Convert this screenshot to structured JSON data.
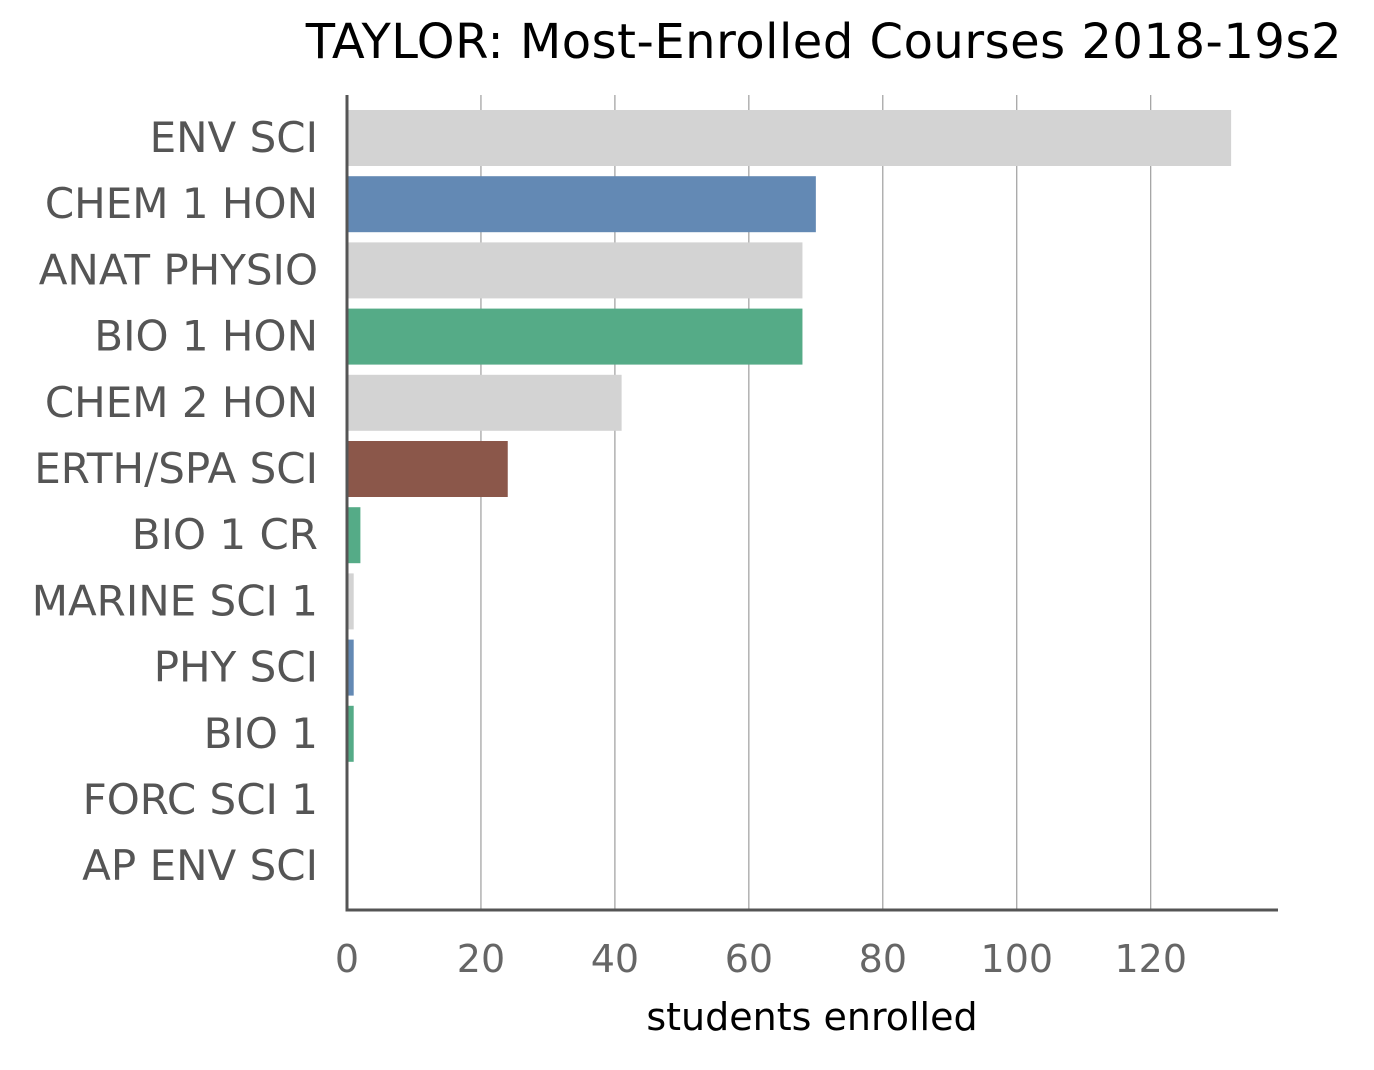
{
  "chart_data": {
    "type": "bar",
    "orientation": "horizontal",
    "title": "TAYLOR: Most-Enrolled Courses 2018-19s2",
    "xlabel": "students enrolled",
    "ylabel": "",
    "xlim": [
      0,
      139
    ],
    "xticks": [
      0,
      20,
      40,
      60,
      80,
      100,
      120
    ],
    "grid": "vertical",
    "categories": [
      "ENV SCI",
      "CHEM 1 HON",
      "ANAT PHYSIO",
      "BIO 1 HON",
      "CHEM 2 HON",
      "ERTH/SPA SCI",
      "BIO 1 CR",
      "MARINE SCI 1",
      "PHY SCI",
      "BIO 1",
      "FORC SCI 1",
      "AP ENV SCI"
    ],
    "values": [
      132,
      70,
      68,
      68,
      41,
      24,
      2,
      1,
      1,
      1,
      0,
      0
    ],
    "colors": [
      "#d3d3d3",
      "#6389b4",
      "#d3d3d3",
      "#55ab87",
      "#d3d3d3",
      "#8b574a",
      "#55ab87",
      "#d3d3d3",
      "#6389b4",
      "#55ab87",
      "#d3d3d3",
      "#d3d3d3"
    ]
  }
}
